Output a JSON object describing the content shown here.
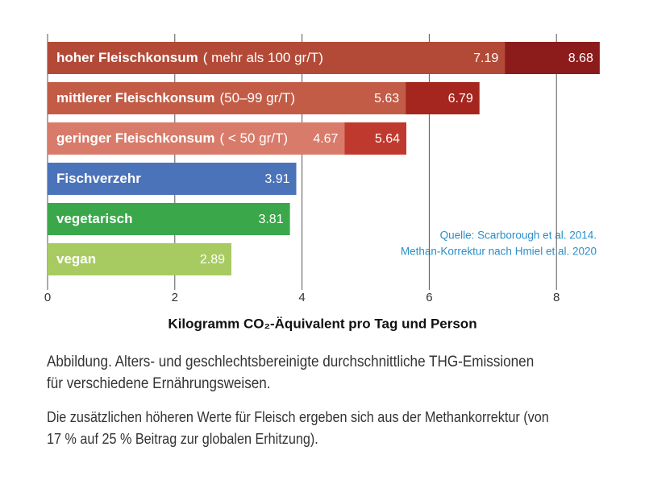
{
  "chart_data": {
    "type": "overlap-bar",
    "categories": [
      "hoher Fleischkonsum",
      "mittlerer Fleischkonsum",
      "geringer Fleischkonsum",
      "Fischverzehr",
      "vegetarisch",
      "vegan"
    ],
    "category_notes": [
      "( mehr als 100 gr/T)",
      "(50–99 gr/T)",
      "( < 50 gr/T)",
      null,
      null,
      null
    ],
    "values": [
      7.19,
      5.63,
      4.67,
      3.91,
      3.81,
      2.89
    ],
    "colors": [
      "#b34a38",
      "#c25c47",
      "#d97b6b",
      "#4b73b9",
      "#3aa84a",
      "#a8cb61"
    ],
    "corrected_values": [
      8.68,
      6.79,
      5.64,
      null,
      null,
      null
    ],
    "corrected_colors": [
      "#8c1b1b",
      "#a5261f",
      "#c0392f",
      null,
      null,
      null
    ],
    "xlim": [
      0,
      9
    ],
    "xticks": [
      0,
      2,
      4,
      6,
      8
    ],
    "grid": true,
    "x_label": "Kilogramm CO₂-Äquivalent pro Tag und Person",
    "source": [
      "Quelle: Scarborough et al. 2014.",
      "Methan-Korrektur nach Hmiel et al. 2020"
    ],
    "caption": [
      "Abbildung. Alters- und geschlechtsbereinigte durchschnittliche THG-Emissionen",
      "für verschiedene Ernährungsweisen."
    ],
    "note": [
      "Die zusätzlichen höheren Werte für Fleisch ergeben sich aus der Methankorrektur (von",
      "17 % auf 25 % Beitrag zur globalen Erhitzung)."
    ]
  }
}
